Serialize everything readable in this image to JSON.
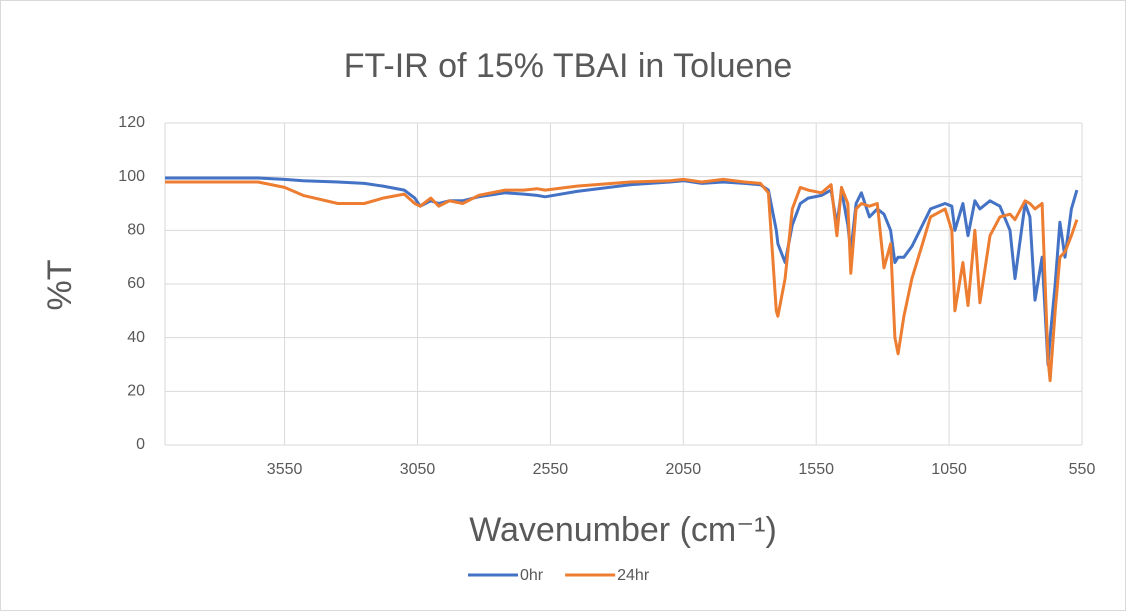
{
  "chart_data": {
    "type": "line",
    "title": "FT-IR of 15% TBAI in Toluene",
    "x_label": "Wavenumber (cm⁻¹)",
    "y_label": "%T",
    "x": [
      4000,
      3800,
      3650,
      3550,
      3480,
      3350,
      3250,
      3180,
      3100,
      3060,
      3040,
      3000,
      2970,
      2930,
      2880,
      2820,
      2720,
      2650,
      2600,
      2570,
      2450,
      2250,
      2100,
      2050,
      1980,
      1900,
      1820,
      1760,
      1730,
      1700,
      1694,
      1667,
      1640,
      1610,
      1580,
      1530,
      1494,
      1472,
      1455,
      1431,
      1420,
      1400,
      1380,
      1350,
      1320,
      1295,
      1270,
      1254,
      1242,
      1220,
      1190,
      1150,
      1120,
      1065,
      1040,
      1028,
      998,
      979,
      953,
      934,
      896,
      859,
      821,
      802,
      764,
      746,
      727,
      700,
      678,
      670,
      651,
      633,
      614,
      590,
      569
    ],
    "series": [
      {
        "name": "0hr",
        "color": "#4472c4",
        "values": [
          99.5,
          99.5,
          99.5,
          99,
          98.5,
          98,
          97.5,
          96.5,
          95,
          92,
          89,
          91,
          90,
          91,
          91,
          92.5,
          94,
          93.5,
          93,
          92.5,
          94.5,
          97,
          98,
          98.5,
          97.5,
          98,
          97.5,
          97,
          95,
          80,
          75,
          68,
          82,
          90,
          92,
          93,
          95,
          82,
          95,
          82,
          72,
          90,
          94,
          85,
          88,
          86,
          80,
          68,
          70,
          70,
          74,
          82,
          88,
          90,
          89,
          80,
          90,
          78,
          91,
          88,
          91,
          89,
          80,
          62,
          90,
          85,
          54,
          70,
          30,
          40,
          60,
          83,
          70,
          88,
          95
        ]
      },
      {
        "name": "24hr",
        "color": "#ed7d31",
        "values": [
          98,
          98,
          98,
          96,
          93,
          90,
          90,
          92,
          93.5,
          90,
          89,
          92,
          89,
          91,
          90,
          93,
          95,
          95,
          95.5,
          95,
          96.5,
          98,
          98.5,
          99,
          98,
          99,
          98,
          97.5,
          94,
          50,
          48,
          62,
          88,
          96,
          95,
          94,
          97,
          78,
          96,
          90,
          64,
          88,
          90,
          89,
          90,
          66,
          75,
          40,
          34,
          48,
          62,
          75,
          85,
          88,
          80,
          50,
          68,
          52,
          80,
          53,
          78,
          85,
          86,
          84,
          91,
          90,
          88,
          90,
          32,
          24,
          50,
          70,
          72,
          78,
          84
        ]
      }
    ],
    "xlim": [
      4000,
      550
    ],
    "xticks": [
      3550,
      3050,
      2550,
      2050,
      1550,
      1050,
      550
    ],
    "ylim": [
      0,
      120
    ],
    "yticks": [
      0,
      20,
      40,
      60,
      80,
      100,
      120
    ],
    "grid": true,
    "legend": "bottom"
  }
}
